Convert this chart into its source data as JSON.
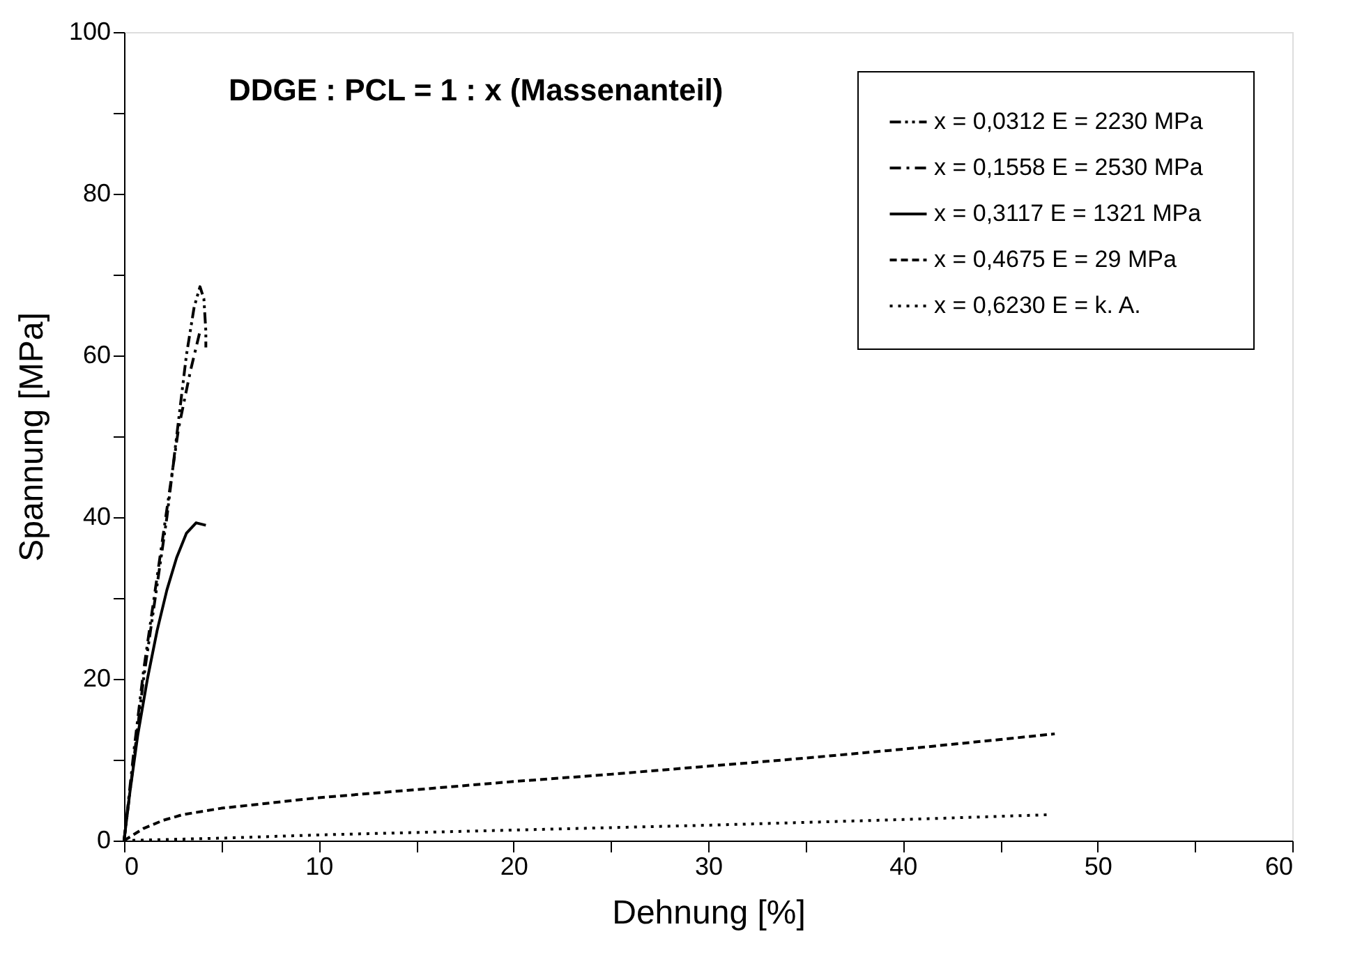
{
  "chart_data": {
    "type": "line",
    "xlabel": "Dehnung [%]",
    "ylabel": "Spannung [MPa]",
    "annotations": [
      "DDGE : PCL = 1 : x (Massenanteil)"
    ],
    "xlim": [
      0,
      60
    ],
    "ylim": [
      0,
      100
    ],
    "xticks": [
      0,
      {
        "value": 5,
        "label": null
      },
      10,
      {
        "value": 15,
        "label": null
      },
      20,
      {
        "value": 25,
        "label": null
      },
      30,
      {
        "value": 35,
        "label": null
      },
      40,
      {
        "value": 45,
        "label": null
      },
      50,
      {
        "value": 55,
        "label": null
      },
      60
    ],
    "yticks": [
      0,
      {
        "value": 10,
        "label": null
      },
      20,
      {
        "value": 30,
        "label": null
      },
      40,
      {
        "value": 50,
        "label": null
      },
      60,
      {
        "value": 70,
        "label": null
      },
      80,
      {
        "value": 90,
        "label": null
      },
      100
    ],
    "grid": false,
    "legend": "top right",
    "marker": "none",
    "series": [
      {
        "name": "x = 0,0312    E = 2230 MPa",
        "color": "#000000",
        "line_style": "dashdotdot",
        "x": [
          0,
          0.5,
          1,
          1.6,
          2.2,
          2.7,
          3.2,
          3.6,
          3.9,
          4.1,
          4.2,
          4.2
        ],
        "values": [
          0,
          10,
          20,
          30,
          40,
          50,
          60,
          66,
          68.5,
          67,
          63,
          61
        ]
      },
      {
        "name": "x = 0,1558    E = 2530 MPa",
        "color": "#000000",
        "line_style": "dashdot",
        "x": [
          0,
          0.5,
          1,
          1.6,
          2.2,
          2.8,
          3.4,
          3.9
        ],
        "values": [
          0,
          11,
          21,
          31,
          41,
          51,
          58,
          63
        ]
      },
      {
        "name": "x = 0,3117    E = 1321 MPa",
        "color": "#000000",
        "line_style": "solid",
        "x": [
          0,
          0.3,
          0.7,
          1.2,
          1.7,
          2.2,
          2.7,
          3.2,
          3.7,
          4.2
        ],
        "values": [
          0,
          6,
          13,
          20,
          26,
          31,
          35,
          38,
          39.3,
          39
        ]
      },
      {
        "name": "x = 0,4675    E =    29 MPa",
        "color": "#000000",
        "line_style": "dashed",
        "x": [
          0,
          1,
          2,
          3,
          5,
          10,
          15,
          20,
          25,
          30,
          35,
          40,
          45,
          47.8
        ],
        "values": [
          0,
          1.5,
          2.5,
          3.2,
          4,
          5.3,
          6.3,
          7.3,
          8.2,
          9.2,
          10.2,
          11.3,
          12.5,
          13.2
        ]
      },
      {
        "name": "x = 0,6230    E = k. A.",
        "color": "#000000",
        "line_style": "dotted",
        "x": [
          0,
          5,
          10,
          20,
          30,
          40,
          47.5
        ],
        "values": [
          0,
          0.3,
          0.7,
          1.3,
          1.9,
          2.6,
          3.2
        ]
      }
    ]
  }
}
